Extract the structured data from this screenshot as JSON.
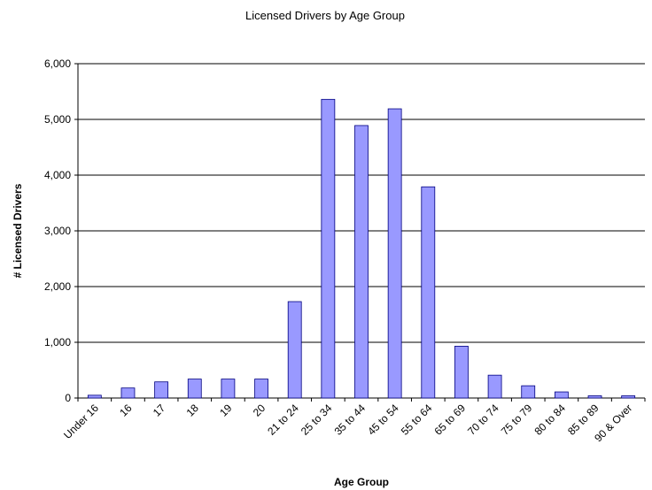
{
  "chart_data": {
    "type": "bar",
    "title": "Licensed Drivers by Age Group",
    "x_label": "Age Group",
    "y_label": "# Licensed Drivers",
    "categories": [
      "Under 16",
      "16",
      "17",
      "18",
      "19",
      "20",
      "21 to 24",
      "25 to 34",
      "35 to 44",
      "45 to 54",
      "55 to 64",
      "65 to 69",
      "70 to 74",
      "75 to 79",
      "80 to 84",
      "85 to 89",
      "90 & Over"
    ],
    "values": [
      50,
      180,
      290,
      340,
      340,
      340,
      1730,
      5360,
      4890,
      5190,
      3790,
      930,
      410,
      220,
      110,
      40,
      40
    ],
    "color": "#9999ff",
    "ylim": [
      0,
      6000
    ],
    "yticks": [
      0,
      {
        "value": 1000,
        "label": "1,000"
      },
      {
        "value": 2000,
        "label": "2,000"
      },
      {
        "value": 3000,
        "label": "3,000"
      },
      {
        "value": 4000,
        "label": "4,000"
      },
      {
        "value": 5000,
        "label": "5,000"
      },
      {
        "value": 6000,
        "label": "6,000"
      }
    ],
    "grid": true
  }
}
